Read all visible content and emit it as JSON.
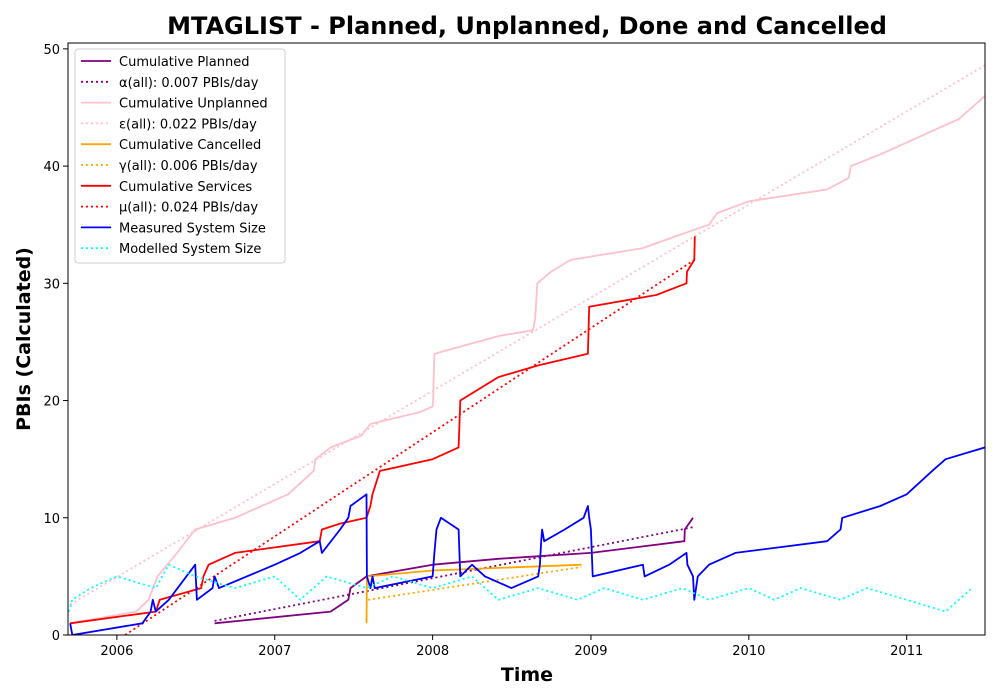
{
  "chart_data": {
    "type": "line",
    "title": "MTAGLIST - Planned, Unplanned, Done  and Cancelled",
    "xlabel": "Time",
    "ylabel": "PBIs (Calculated)",
    "xlim": [
      "2005-09-10",
      "2011-07-01"
    ],
    "ylim": [
      0,
      50.5
    ],
    "x_ticks": [
      "2006",
      "2007",
      "2008",
      "2009",
      "2010",
      "2011"
    ],
    "y_ticks": [
      0,
      10,
      20,
      30,
      40,
      50
    ],
    "grid": false,
    "legend_position": "upper-left",
    "series": [
      {
        "name": "Cumulative Planned",
        "color": "#800080",
        "style": "solid",
        "points": [
          [
            "2006-08-15",
            1
          ],
          [
            "2007-05-10",
            2
          ],
          [
            "2007-06-20",
            3
          ],
          [
            "2007-06-25",
            4
          ],
          [
            "2007-08-01",
            5
          ],
          [
            "2008-01-01",
            6
          ],
          [
            "2008-06-01",
            6.5
          ],
          [
            "2009-01-01",
            7
          ],
          [
            "2009-08-05",
            8
          ],
          [
            "2009-08-06",
            9
          ],
          [
            "2009-08-25",
            10
          ]
        ]
      },
      {
        "name": "α(all): 0.007 PBIs/day",
        "color": "#800080",
        "style": "dotted",
        "points": [
          [
            "2006-08-15",
            1.2
          ],
          [
            "2009-08-25",
            9.2
          ]
        ]
      },
      {
        "name": "Cumulative Unplanned",
        "color": "#ffc0cb",
        "style": "solid",
        "points": [
          [
            "2005-09-15",
            1
          ],
          [
            "2006-02-15",
            2
          ],
          [
            "2006-03-15",
            3
          ],
          [
            "2006-04-05",
            5
          ],
          [
            "2006-05-20",
            7
          ],
          [
            "2006-07-01",
            9
          ],
          [
            "2006-10-01",
            10
          ],
          [
            "2007-02-01",
            12
          ],
          [
            "2007-04-01",
            14
          ],
          [
            "2007-04-05",
            15
          ],
          [
            "2007-05-10",
            16
          ],
          [
            "2007-07-20",
            17
          ],
          [
            "2007-08-10",
            18
          ],
          [
            "2007-12-01",
            19
          ],
          [
            "2008-01-01",
            19.5
          ],
          [
            "2008-01-02",
            20
          ],
          [
            "2008-01-05",
            24
          ],
          [
            "2008-06-01",
            25.5
          ],
          [
            "2008-08-20",
            26
          ],
          [
            "2008-08-25",
            27
          ],
          [
            "2008-08-30",
            30
          ],
          [
            "2008-10-01",
            31
          ],
          [
            "2008-11-15",
            32
          ],
          [
            "2009-05-01",
            33
          ],
          [
            "2009-07-15",
            34
          ],
          [
            "2009-10-01",
            35
          ],
          [
            "2009-10-20",
            36
          ],
          [
            "2010-01-01",
            37
          ],
          [
            "2010-07-01",
            38
          ],
          [
            "2010-08-20",
            39
          ],
          [
            "2010-08-25",
            40
          ],
          [
            "2010-11-01",
            41
          ],
          [
            "2011-01-01",
            42
          ],
          [
            "2011-03-01",
            43
          ],
          [
            "2011-05-01",
            44
          ],
          [
            "2011-06-01",
            45
          ],
          [
            "2011-07-01",
            46
          ]
        ]
      },
      {
        "name": "ε(all): 0.022 PBIs/day",
        "color": "#ffc0cb",
        "style": "dotted",
        "points": [
          [
            "2005-09-15",
            2.6
          ],
          [
            "2011-07-01",
            48.6
          ]
        ]
      },
      {
        "name": "Cumulative Cancelled",
        "color": "#ffa500",
        "style": "solid",
        "points": [
          [
            "2007-08-01",
            1
          ],
          [
            "2007-08-02",
            5
          ],
          [
            "2008-01-01",
            5.5
          ],
          [
            "2008-12-10",
            6
          ]
        ]
      },
      {
        "name": "γ(all): 0.006 PBIs/day",
        "color": "#ffa500",
        "style": "dotted",
        "points": [
          [
            "2007-08-05",
            3
          ],
          [
            "2008-12-10",
            5.8
          ]
        ]
      },
      {
        "name": "Cumulative Services",
        "color": "#ff0000",
        "style": "solid",
        "points": [
          [
            "2005-09-15",
            1
          ],
          [
            "2006-04-01",
            2
          ],
          [
            "2006-04-10",
            3
          ],
          [
            "2006-07-15",
            4
          ],
          [
            "2006-07-20",
            5
          ],
          [
            "2006-08-01",
            6
          ],
          [
            "2006-10-01",
            7
          ],
          [
            "2007-04-15",
            8
          ],
          [
            "2007-04-20",
            9
          ],
          [
            "2007-06-01",
            9.5
          ],
          [
            "2007-08-01",
            10
          ],
          [
            "2007-08-10",
            11
          ],
          [
            "2007-08-15",
            12
          ],
          [
            "2007-09-01",
            14
          ],
          [
            "2008-01-01",
            15
          ],
          [
            "2008-03-01",
            16
          ],
          [
            "2008-03-05",
            20
          ],
          [
            "2008-06-01",
            22
          ],
          [
            "2008-09-01",
            23
          ],
          [
            "2008-12-25",
            24
          ],
          [
            "2008-12-28",
            28
          ],
          [
            "2009-06-01",
            29
          ],
          [
            "2009-08-10",
            30
          ],
          [
            "2009-08-11",
            31
          ],
          [
            "2009-08-28",
            32
          ],
          [
            "2009-08-29",
            34
          ]
        ]
      },
      {
        "name": "μ(all): 0.024 PBIs/day",
        "color": "#ff0000",
        "style": "dotted",
        "points": [
          [
            "2006-01-20",
            0
          ],
          [
            "2009-08-28",
            32
          ]
        ]
      },
      {
        "name": "Measured System Size",
        "color": "#0000ff",
        "style": "solid",
        "points": [
          [
            "2005-09-15",
            1
          ],
          [
            "2005-09-20",
            0
          ],
          [
            "2006-03-01",
            1
          ],
          [
            "2006-03-20",
            2
          ],
          [
            "2006-03-25",
            3
          ],
          [
            "2006-04-01",
            2
          ],
          [
            "2006-05-01",
            3
          ],
          [
            "2006-07-01",
            6
          ],
          [
            "2006-07-05",
            3
          ],
          [
            "2006-08-10",
            4
          ],
          [
            "2006-08-15",
            5
          ],
          [
            "2006-08-25",
            4
          ],
          [
            "2007-01-01",
            6
          ],
          [
            "2007-03-01",
            7
          ],
          [
            "2007-04-15",
            8
          ],
          [
            "2007-04-20",
            7
          ],
          [
            "2007-06-01",
            9
          ],
          [
            "2007-06-20",
            10
          ],
          [
            "2007-06-25",
            11
          ],
          [
            "2007-08-01",
            12
          ],
          [
            "2007-08-02",
            5
          ],
          [
            "2007-08-10",
            4
          ],
          [
            "2007-08-15",
            5
          ],
          [
            "2007-08-20",
            4
          ],
          [
            "2008-01-01",
            5
          ],
          [
            "2008-01-03",
            6
          ],
          [
            "2008-01-05",
            7
          ],
          [
            "2008-01-10",
            9
          ],
          [
            "2008-01-20",
            10
          ],
          [
            "2008-03-01",
            9
          ],
          [
            "2008-03-05",
            5
          ],
          [
            "2008-04-01",
            6
          ],
          [
            "2008-05-01",
            5
          ],
          [
            "2008-07-01",
            4
          ],
          [
            "2008-09-01",
            5
          ],
          [
            "2008-09-05",
            6
          ],
          [
            "2008-09-08",
            8
          ],
          [
            "2008-09-10",
            9
          ],
          [
            "2008-09-15",
            8
          ],
          [
            "2008-11-01",
            9
          ],
          [
            "2008-12-15",
            10
          ],
          [
            "2008-12-25",
            11
          ],
          [
            "2008-12-28",
            10
          ],
          [
            "2009-01-01",
            9
          ],
          [
            "2009-01-05",
            5
          ],
          [
            "2009-05-01",
            6
          ],
          [
            "2009-05-05",
            5
          ],
          [
            "2009-07-01",
            6
          ],
          [
            "2009-08-10",
            7
          ],
          [
            "2009-08-12",
            6
          ],
          [
            "2009-08-25",
            5
          ],
          [
            "2009-08-28",
            3
          ],
          [
            "2009-09-05",
            5
          ],
          [
            "2009-10-01",
            6
          ],
          [
            "2009-12-01",
            7
          ],
          [
            "2010-07-01",
            8
          ],
          [
            "2010-08-01",
            9
          ],
          [
            "2010-08-05",
            10
          ],
          [
            "2010-11-01",
            11
          ],
          [
            "2011-01-01",
            12
          ],
          [
            "2011-03-01",
            14
          ],
          [
            "2011-04-01",
            15
          ],
          [
            "2011-07-01",
            16
          ]
        ]
      },
      {
        "name": "Modelled System Size",
        "color": "#00ffff",
        "style": "dotted",
        "points": [
          [
            "2005-09-12",
            2
          ],
          [
            "2005-09-20",
            3
          ],
          [
            "2005-11-01",
            4
          ],
          [
            "2006-01-01",
            5
          ],
          [
            "2006-04-01",
            4
          ],
          [
            "2006-05-01",
            6
          ],
          [
            "2006-07-01",
            5
          ],
          [
            "2006-10-01",
            4
          ],
          [
            "2007-01-01",
            5
          ],
          [
            "2007-03-01",
            3
          ],
          [
            "2007-05-01",
            5
          ],
          [
            "2007-08-01",
            4
          ],
          [
            "2007-10-01",
            5
          ],
          [
            "2008-01-01",
            4
          ],
          [
            "2008-04-01",
            5
          ],
          [
            "2008-06-01",
            3
          ],
          [
            "2008-09-01",
            4
          ],
          [
            "2008-12-01",
            3
          ],
          [
            "2009-02-01",
            4
          ],
          [
            "2009-05-01",
            3
          ],
          [
            "2009-08-01",
            4
          ],
          [
            "2009-10-01",
            3
          ],
          [
            "2010-01-01",
            4
          ],
          [
            "2010-03-01",
            3
          ],
          [
            "2010-05-01",
            4
          ],
          [
            "2010-08-01",
            3
          ],
          [
            "2010-10-01",
            4
          ],
          [
            "2011-01-01",
            3
          ],
          [
            "2011-04-01",
            2
          ],
          [
            "2011-06-01",
            4
          ]
        ]
      }
    ]
  }
}
